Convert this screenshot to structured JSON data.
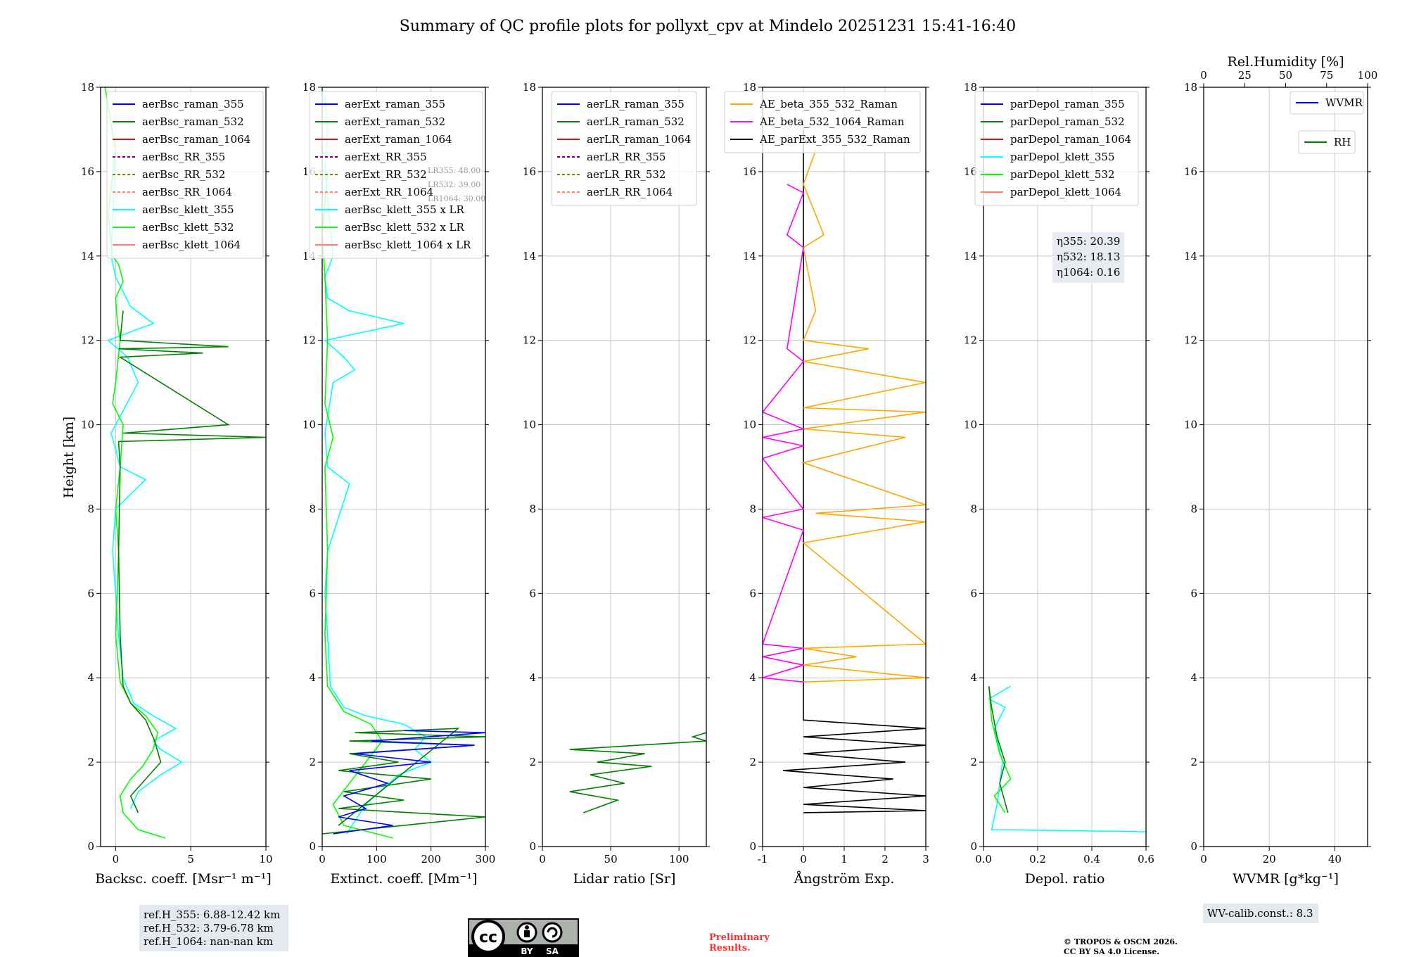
{
  "figure": {
    "title": "Summary of QC profile plots for pollyxt_cpv at Mindelo 20251231 15:41-16:40",
    "ylabel": "Height [km]",
    "yticks": [
      0,
      2,
      4,
      6,
      8,
      10,
      12,
      14,
      16,
      18
    ],
    "ref_heights": [
      "ref.H_355: 6.88-12.42 km",
      "ref.H_532: 3.79-6.78 km",
      "ref.H_1064: nan-nan km"
    ],
    "lr_notes": [
      "LR355: 48.00",
      "LR532: 39.00",
      "LR1064: 30.00"
    ],
    "eta": [
      "η355: 20.39",
      "η532: 18.13",
      "η1064: 0.16"
    ],
    "wv_calib": "WV-calib.const.: 8.3",
    "license_badge": {
      "cc": "cc",
      "by": "BY",
      "sa": "SA"
    },
    "preliminary": [
      "Preliminary",
      "Results."
    ],
    "copyright": [
      "© TROPOS & OSCM 2026.",
      "CC BY SA 4.0 License."
    ],
    "colors": {
      "blue": "#0000ff",
      "green": "#008000",
      "red": "#ff0000",
      "purple": "#800080",
      "olive": "#808000",
      "salmon": "#fa8072",
      "cyan": "#00ffff",
      "lime": "#00ff00",
      "orange": "#ffa500",
      "magenta": "#ff00ff",
      "black": "#000000"
    }
  },
  "chart_data": [
    {
      "type": "line",
      "xlabel": "Backsc. coeff. [Msr⁻¹ m⁻¹]",
      "xlim": [
        -1,
        10
      ],
      "ylim": [
        0,
        18
      ],
      "xticks": [
        0,
        5,
        10
      ],
      "legend": [
        "aerBsc_raman_355",
        "aerBsc_raman_532",
        "aerBsc_raman_1064",
        "aerBsc_RR_355",
        "aerBsc_RR_532",
        "aerBsc_RR_1064",
        "aerBsc_klett_355",
        "aerBsc_klett_532",
        "aerBsc_klett_1064"
      ],
      "series": [
        {
          "name": "aerBsc_klett_355",
          "color": "cyan",
          "x": [
            1.0,
            1.5,
            3.0,
            4.4,
            3.0,
            2.5,
            4.0,
            2.5,
            1.2,
            0.5,
            0.2,
            0.0,
            -0.2,
            0.0,
            2.0,
            0.3,
            -0.3,
            1.5,
            0.8,
            -0.5,
            2.5,
            1.0,
            0.0,
            -0.3,
            0.0
          ],
          "y": [
            0.9,
            1.3,
            1.7,
            2.0,
            2.3,
            2.5,
            2.8,
            3.1,
            3.4,
            4.0,
            5.0,
            6.0,
            7.0,
            8.0,
            8.7,
            9.0,
            9.8,
            11.0,
            11.6,
            12.0,
            12.4,
            12.8,
            13.5,
            14.0,
            16.5
          ]
        },
        {
          "name": "aerBsc_klett_532",
          "color": "lime",
          "x": [
            3.3,
            1.5,
            0.5,
            0.3,
            1.0,
            1.8,
            2.5,
            2.8,
            2.0,
            1.0,
            0.3,
            0.0,
            0.1,
            0.2,
            0.0,
            0.3,
            0.5,
            -0.2,
            0.0,
            0.3,
            0.1,
            0.0,
            0.5,
            0.2,
            -0.2,
            -0.5,
            0.0,
            -0.7
          ],
          "y": [
            0.2,
            0.4,
            0.8,
            1.2,
            1.6,
            1.9,
            2.3,
            2.7,
            3.1,
            3.4,
            3.9,
            5.0,
            6.0,
            7.0,
            8.0,
            9.0,
            10.0,
            10.5,
            11.0,
            12.0,
            12.5,
            13.0,
            13.4,
            13.8,
            14.0,
            15.0,
            16.5,
            18.0
          ]
        },
        {
          "name": "aerBsc_raman_532",
          "color": "green",
          "x": [
            1.5,
            1.0,
            2.0,
            3.0,
            2.6,
            2.0,
            1.0,
            0.5,
            0.3,
            0.2,
            0.3,
            0.2,
            10.0,
            0.5,
            7.5,
            0.3,
            5.8,
            0.2,
            7.5,
            0.3,
            0.5
          ],
          "y": [
            0.8,
            1.2,
            1.6,
            2.0,
            2.5,
            3.0,
            3.4,
            3.8,
            5.0,
            7.0,
            9.0,
            9.6,
            9.7,
            9.8,
            10.0,
            11.6,
            11.7,
            11.8,
            11.85,
            12.0,
            12.7
          ]
        }
      ]
    },
    {
      "type": "line",
      "xlabel": "Extinct. coeff. [Mm⁻¹]",
      "xlim": [
        0,
        300
      ],
      "ylim": [
        0,
        18
      ],
      "xticks": [
        0,
        100,
        200,
        300
      ],
      "legend": [
        "aerExt_raman_355",
        "aerExt_raman_532",
        "aerExt_raman_1064",
        "aerExt_RR_355",
        "aerExt_RR_532",
        "aerExt_RR_1064",
        "aerBsc_klett_355 x LR",
        "aerBsc_klett_532 x LR",
        "aerBsc_klett_1064 x LR"
      ],
      "series": [
        {
          "name": "aerBsc_klett_355 x LR",
          "color": "cyan",
          "x": [
            45,
            80,
            140,
            200,
            170,
            190,
            150,
            80,
            40,
            15,
            10,
            5,
            10,
            50,
            10,
            5,
            20,
            60,
            40,
            5,
            150,
            50,
            10,
            5,
            20,
            5,
            10,
            5
          ],
          "y": [
            0.3,
            1.0,
            1.7,
            2.0,
            2.3,
            2.6,
            2.9,
            3.1,
            3.3,
            3.8,
            5.0,
            6.0,
            7.0,
            8.6,
            9.0,
            9.8,
            11.0,
            11.3,
            11.6,
            12.0,
            12.4,
            12.7,
            13.0,
            13.5,
            14.0,
            16.0,
            17.0,
            17.8
          ]
        },
        {
          "name": "aerBsc_klett_532 x LR",
          "color": "lime",
          "x": [
            130,
            40,
            20,
            50,
            80,
            110,
            90,
            40,
            10,
            5,
            10,
            5,
            20,
            5,
            10,
            5,
            0,
            10
          ],
          "y": [
            0.2,
            0.5,
            1.0,
            1.5,
            2.0,
            2.5,
            2.9,
            3.2,
            3.8,
            5.0,
            7.0,
            9.0,
            9.7,
            10.5,
            12.0,
            13.5,
            14.5,
            16.0
          ]
        },
        {
          "name": "aerExt_raman_532",
          "color": "green",
          "x": [
            0,
            300,
            30,
            150,
            40,
            200,
            30,
            140,
            50,
            280,
            50,
            300,
            60,
            250,
            30
          ],
          "y": [
            0.3,
            0.7,
            0.9,
            1.1,
            1.3,
            1.6,
            1.8,
            2.0,
            2.2,
            2.4,
            2.5,
            2.6,
            2.7,
            2.8,
            0.5
          ]
        },
        {
          "name": "aerExt_raman_355",
          "color": "blue",
          "x": [
            20,
            130,
            30,
            80,
            40,
            120,
            50,
            200,
            60,
            280,
            90,
            300,
            150
          ],
          "y": [
            0.3,
            0.5,
            0.7,
            0.9,
            1.2,
            1.5,
            1.8,
            2.0,
            2.2,
            2.4,
            2.5,
            2.7,
            2.75
          ]
        }
      ]
    },
    {
      "type": "line",
      "xlabel": "Lidar ratio [Sr]",
      "xlim": [
        0,
        120
      ],
      "ylim": [
        0,
        18
      ],
      "xticks": [
        0,
        50,
        100
      ],
      "legend": [
        "aerLR_raman_355",
        "aerLR_raman_532",
        "aerLR_raman_1064",
        "aerLR_RR_355",
        "aerLR_RR_532",
        "aerLR_RR_1064"
      ],
      "series": [
        {
          "name": "aerLR_raman_532",
          "color": "green",
          "x": [
            30,
            55,
            20,
            60,
            35,
            80,
            40,
            75,
            20,
            120,
            110,
            120
          ],
          "y": [
            0.8,
            1.1,
            1.3,
            1.5,
            1.7,
            1.9,
            2.0,
            2.2,
            2.3,
            2.5,
            2.6,
            2.7
          ]
        }
      ]
    },
    {
      "type": "line",
      "xlabel": "Ångström Exp.",
      "xlim": [
        -1,
        3
      ],
      "ylim": [
        0,
        18
      ],
      "xticks": [
        -1,
        0,
        1,
        2,
        3
      ],
      "legend": [
        "AE_beta_355_532_Raman",
        "AE_beta_532_1064_Raman",
        "AE_parExt_355_532_Raman"
      ],
      "series": [
        {
          "name": "AE_parExt_355_532_Raman",
          "color": "black",
          "x": [
            0,
            3,
            0,
            3,
            0,
            2.2,
            -0.5,
            2.5,
            0,
            3,
            0,
            3,
            0,
            0,
            0
          ],
          "y": [
            0.8,
            0.85,
            1.0,
            1.2,
            1.4,
            1.6,
            1.8,
            2.0,
            2.2,
            2.4,
            2.6,
            2.8,
            3.0,
            3.5,
            17
          ]
        },
        {
          "name": "AE_beta_355_532_Raman",
          "color": "orange",
          "x": [
            0,
            3,
            0,
            1.3,
            0,
            3,
            0,
            3,
            0.3,
            3,
            0,
            2.5,
            0,
            3,
            0,
            3,
            0,
            1.6,
            0,
            0.3,
            0,
            0.5,
            0,
            0.3
          ],
          "y": [
            3.9,
            4.0,
            4.3,
            4.5,
            4.7,
            4.8,
            7.2,
            7.7,
            7.9,
            8.1,
            9.1,
            9.7,
            9.9,
            10.3,
            10.4,
            11.0,
            11.5,
            11.8,
            12.0,
            12.7,
            14.2,
            14.5,
            15.7,
            16.5
          ]
        },
        {
          "name": "AE_beta_532_1064_Raman",
          "color": "magenta",
          "x": [
            0,
            -1,
            0,
            -1,
            0,
            -1,
            0,
            -1,
            0,
            -1,
            0,
            -1,
            0,
            -1,
            0,
            -0.4,
            0,
            -0.4,
            0,
            -0.4
          ],
          "y": [
            3.9,
            4.0,
            4.3,
            4.5,
            4.7,
            4.8,
            7.5,
            7.8,
            8.0,
            9.2,
            9.5,
            9.7,
            9.9,
            10.3,
            11.5,
            11.8,
            14.2,
            14.5,
            15.5,
            15.7
          ]
        }
      ]
    },
    {
      "type": "line",
      "xlabel": "Depol. ratio",
      "xlim": [
        0,
        0.6
      ],
      "ylim": [
        0,
        18
      ],
      "xticks": [
        0.0,
        0.2,
        0.4,
        0.6
      ],
      "legend": [
        "parDepol_raman_355",
        "parDepol_raman_532",
        "parDepol_raman_1064",
        "parDepol_klett_355",
        "parDepol_klett_532",
        "parDepol_klett_1064"
      ],
      "series": [
        {
          "name": "parDepol_klett_355",
          "color": "cyan",
          "x": [
            0.6,
            0.03,
            0.05,
            0.07,
            0.04,
            0.08,
            0.02,
            0.1
          ],
          "y": [
            0.35,
            0.4,
            1.0,
            2.0,
            2.8,
            3.3,
            3.5,
            3.8
          ]
        },
        {
          "name": "parDepol_klett_532",
          "color": "lime",
          "x": [
            0.08,
            0.04,
            0.1,
            0.06,
            0.03,
            0.02
          ],
          "y": [
            0.8,
            1.2,
            1.6,
            2.2,
            3.0,
            3.8
          ]
        },
        {
          "name": "parDepol_raman_532",
          "color": "green",
          "x": [
            0.09,
            0.06,
            0.08,
            0.05,
            0.03,
            0.02
          ],
          "y": [
            0.8,
            1.5,
            2.0,
            2.6,
            3.3,
            3.8
          ]
        }
      ]
    },
    {
      "type": "line",
      "xlabel": "WVMR [g*kg⁻¹]",
      "x2label": "Rel.Humidity [%]",
      "xlim": [
        0,
        50
      ],
      "x2lim": [
        0,
        100
      ],
      "ylim": [
        0,
        18
      ],
      "xticks": [
        0,
        20,
        40
      ],
      "x2ticks": [
        0,
        25,
        50,
        75,
        100
      ],
      "legend": [
        "WVMR",
        "RH"
      ],
      "series": []
    }
  ]
}
